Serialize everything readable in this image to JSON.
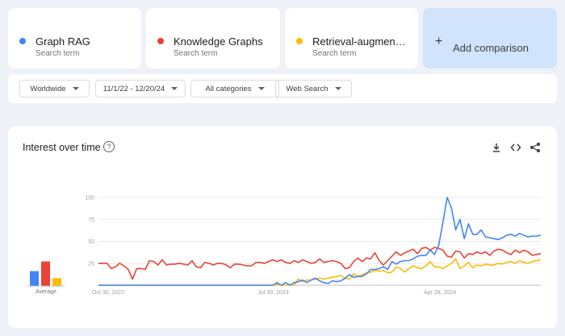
{
  "terms": [
    {
      "name": "Graph RAG",
      "sub": "Search term",
      "color": "#4285f4"
    },
    {
      "name": "Knowledge Graphs",
      "sub": "Search term",
      "color": "#ea4335"
    },
    {
      "name": "Retrieval-augmen…",
      "sub": "Search term",
      "color": "#fbbc04"
    }
  ],
  "add_comparison": {
    "label": "Add comparison",
    "icon": "plus-icon"
  },
  "filters": [
    {
      "label": "Worldwide"
    },
    {
      "label": "11/1/22 - 12/20/24"
    },
    {
      "label": "All categories"
    },
    {
      "label": "Web Search"
    }
  ],
  "panel": {
    "title": "Interest over time",
    "help_glyph": "?",
    "icons": [
      "download-icon",
      "embed-icon",
      "share-icon"
    ]
  },
  "chart_data": {
    "type": "line",
    "title": "Interest over time",
    "ylim": [
      0,
      100
    ],
    "y_ticks": [
      100,
      75,
      50,
      25
    ],
    "grid": true,
    "x_tick_labels": [
      {
        "label": "Oct 30, 2022",
        "index": 0
      },
      {
        "label": "Jul 30, 2023",
        "index": 39
      },
      {
        "label": "Apr 28, 2024",
        "index": 78
      }
    ],
    "average": {
      "label": "Average",
      "values": [
        17,
        28,
        9
      ]
    },
    "series": [
      {
        "name": "Graph RAG",
        "color": "#4285f4",
        "values": [
          0,
          0,
          0,
          0,
          0,
          0,
          0,
          0,
          0,
          0,
          0,
          0,
          0,
          0,
          0,
          0,
          0,
          0,
          0,
          0,
          0,
          0,
          0,
          0,
          0,
          0,
          0,
          0,
          0,
          0,
          0,
          0,
          0,
          0,
          0,
          0,
          0,
          0,
          0,
          0,
          0,
          0,
          3,
          0,
          3,
          0,
          3,
          4,
          6,
          3,
          6,
          8,
          5,
          3,
          2,
          5,
          4,
          5,
          8,
          12,
          9,
          10,
          10,
          13,
          18,
          18,
          19,
          21,
          18,
          27,
          24,
          27,
          28,
          28,
          30,
          33,
          34,
          34,
          40,
          35,
          45,
          72,
          100,
          88,
          63,
          75,
          53,
          70,
          58,
          58,
          63,
          55,
          54,
          53,
          52,
          54,
          57,
          58,
          56,
          59,
          57,
          55,
          56,
          56,
          57
        ]
      },
      {
        "name": "Knowledge Graphs",
        "color": "#ea4335",
        "values": [
          25,
          25,
          25,
          19,
          21,
          25,
          22,
          18,
          7,
          19,
          19,
          18,
          28,
          27,
          23,
          29,
          23,
          24,
          24,
          25,
          24,
          23,
          28,
          21,
          20,
          26,
          25,
          23,
          25,
          25,
          23,
          20,
          24,
          24,
          23,
          22,
          22,
          26,
          26,
          25,
          27,
          29,
          27,
          29,
          26,
          25,
          28,
          26,
          29,
          27,
          25,
          26,
          30,
          26,
          27,
          28,
          27,
          25,
          19,
          20,
          27,
          31,
          27,
          31,
          30,
          37,
          28,
          23,
          28,
          33,
          38,
          34,
          37,
          39,
          41,
          36,
          42,
          43,
          40,
          43,
          42,
          40,
          33,
          32,
          39,
          38,
          31,
          36,
          35,
          38,
          36,
          38,
          34,
          39,
          41,
          40,
          37,
          35,
          40,
          37,
          40,
          38,
          34,
          35,
          36
        ]
      },
      {
        "name": "Retrieval-augmented generation",
        "color": "#fbbc04",
        "values": [
          0,
          0,
          0,
          0,
          0,
          0,
          0,
          0,
          0,
          0,
          0,
          0,
          0,
          0,
          0,
          0,
          0,
          0,
          0,
          0,
          0,
          0,
          0,
          0,
          0,
          0,
          0,
          0,
          0,
          0,
          0,
          0,
          0,
          0,
          0,
          0,
          0,
          0,
          0,
          0,
          0,
          0,
          1,
          0,
          0,
          1,
          0,
          7,
          4,
          6,
          6,
          7,
          8,
          7,
          8,
          9,
          10,
          11,
          8,
          7,
          13,
          10,
          12,
          14,
          15,
          17,
          16,
          17,
          14,
          15,
          21,
          19,
          15,
          19,
          22,
          20,
          19,
          22,
          27,
          21,
          21,
          19,
          22,
          25,
          30,
          19,
          22,
          26,
          20,
          23,
          22,
          24,
          23,
          23,
          25,
          24,
          26,
          27,
          25,
          28,
          26,
          25,
          27,
          28,
          29
        ]
      }
    ]
  }
}
